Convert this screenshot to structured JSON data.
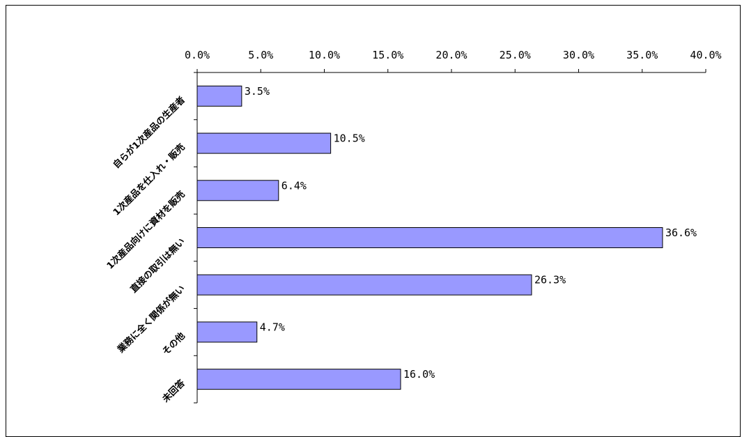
{
  "chart_data": {
    "type": "bar",
    "orientation": "horizontal",
    "categories": [
      "自らが1次産品の生産者",
      "1次産品を仕入れ・販売",
      "1次産品向けに資材を販売",
      "直接の取引は無い",
      "業務に全く関係が無い",
      "その他",
      "未回答"
    ],
    "values": [
      3.5,
      10.5,
      6.4,
      36.6,
      26.3,
      4.7,
      16.0
    ],
    "data_labels": [
      "3.5%",
      "10.5%",
      "6.4%",
      "36.6%",
      "26.3%",
      "4.7%",
      "16.0%"
    ],
    "x_ticks": [
      0,
      5,
      10,
      15,
      20,
      25,
      30,
      35,
      40
    ],
    "x_tick_labels": [
      "0.0%",
      "5.0%",
      "10.0%",
      "15.0%",
      "20.0%",
      "25.0%",
      "30.0%",
      "35.0%",
      "40.0%"
    ],
    "xlim": [
      0,
      40
    ],
    "x_axis_position": "top",
    "grid": false,
    "legend": "none",
    "colors": {
      "bar_fill": "#9999ff",
      "bar_stroke": "#000000",
      "axis": "#000000"
    }
  }
}
